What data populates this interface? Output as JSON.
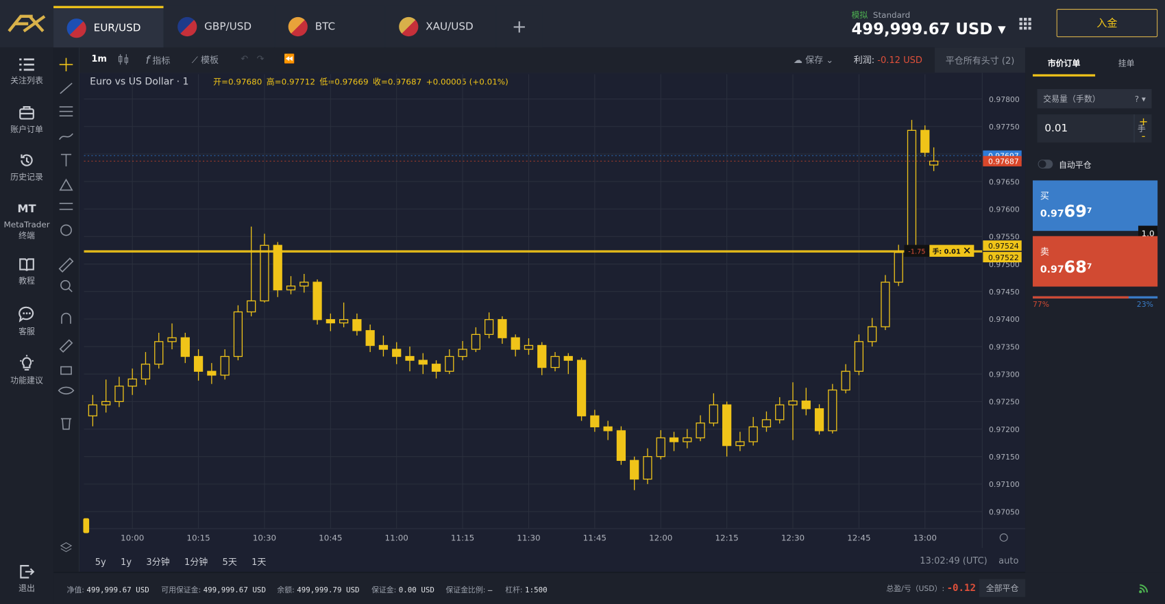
{
  "top_bar": {
    "tabs": [
      "EUR/USD",
      "GBP/USD",
      "BTC",
      "XAU/USD"
    ],
    "account_mode": "模拟",
    "account_type": "Standard",
    "balance": "499,999.67 USD",
    "deposit": "入金"
  },
  "sidebar": {
    "items": [
      "关注列表",
      "账户订单",
      "历史记录",
      "MetaTrader 终端",
      "教程",
      "客服",
      "功能建议"
    ],
    "mt": "MT",
    "logout": "退出"
  },
  "toolbar": {
    "interval": "1m",
    "indicators": "指标",
    "templates": "模板",
    "save": "保存",
    "profit_label": "利润:",
    "profit": "-0.12 USD",
    "close_all": "平仓所有头寸 (2)"
  },
  "chart_footer": {
    "ranges": [
      "5y",
      "1y",
      "3分钟",
      "1分钟",
      "5天",
      "1天"
    ],
    "clock": "13:02:49 (UTC)",
    "scale": "auto"
  },
  "status_bar": {
    "items": [
      {
        "label": "净值:",
        "value": "499,999.67 USD"
      },
      {
        "label": "可用保证金:",
        "value": "499,999.67 USD"
      },
      {
        "label": "余额:",
        "value": "499,999.79 USD"
      },
      {
        "label": "保证金:",
        "value": "0.00 USD"
      },
      {
        "label": "保证金比例:",
        "value": "–"
      },
      {
        "label": "杠杆:",
        "value": "1:500"
      }
    ],
    "pnl_label": "总盈/亏（USD）:",
    "pnl": "-0.12",
    "close_all": "全部平仓"
  },
  "order_panel": {
    "tabs": [
      "市价订单",
      "挂单"
    ],
    "volume_label": "交易量（手数）",
    "volume": "0.01",
    "unit": "手",
    "plus": "+",
    "minus": "-",
    "auto_close": "自动平仓",
    "buy": {
      "label": "买",
      "small": "0.97",
      "big": "69",
      "sup": "7"
    },
    "sell": {
      "label": "卖",
      "small": "0.97",
      "big": "68",
      "sup": "7"
    },
    "spread": "1.0",
    "sell_pct": "77%",
    "buy_pct": "23%"
  },
  "chart_data": {
    "type": "candlestick",
    "title": "Euro vs US Dollar · 1",
    "ohlc_legend": [
      "开=0.97680",
      "高=0.97712",
      "低=0.97669",
      "收=0.97687",
      "+0.00005 (+0.01%)"
    ],
    "x": [
      "09:51",
      "09:54",
      "09:57",
      "10:00",
      "10:03",
      "10:06",
      "10:09",
      "10:12",
      "10:15",
      "10:18",
      "10:21",
      "10:24",
      "10:27",
      "10:30",
      "10:33",
      "10:36",
      "10:39",
      "10:42",
      "10:45",
      "10:48",
      "10:51",
      "10:54",
      "10:57",
      "11:00",
      "11:03",
      "11:06",
      "11:09",
      "11:12",
      "11:15",
      "11:18",
      "11:21",
      "11:24",
      "11:27",
      "11:30",
      "11:33",
      "11:36",
      "11:39",
      "11:42",
      "11:45",
      "11:48",
      "11:51",
      "11:54",
      "11:57",
      "12:00",
      "12:03",
      "12:06",
      "12:09",
      "12:12",
      "12:15",
      "12:18",
      "12:21",
      "12:24",
      "12:27",
      "12:30",
      "12:33",
      "12:36",
      "12:39",
      "12:42",
      "12:45",
      "12:48",
      "12:51",
      "12:54",
      "12:57",
      "13:00",
      "13:02"
    ],
    "open": [
      0.97224,
      0.97244,
      0.9725,
      0.97278,
      0.97291,
      0.97318,
      0.97359,
      0.97366,
      0.97332,
      0.97305,
      0.97298,
      0.97332,
      0.97413,
      0.97433,
      0.97534,
      0.97453,
      0.9746,
      0.97467,
      0.97399,
      0.97393,
      0.97399,
      0.97379,
      0.97352,
      0.97345,
      0.97332,
      0.97325,
      0.97318,
      0.97305,
      0.97332,
      0.97345,
      0.97372,
      0.97399,
      0.97366,
      0.97345,
      0.97352,
      0.97312,
      0.97332,
      0.97325,
      0.97224,
      0.97204,
      0.97197,
      0.97143,
      0.97109,
      0.9715,
      0.97184,
      0.97177,
      0.97184,
      0.97211,
      0.97244,
      0.9717,
      0.97177,
      0.97204,
      0.97217,
      0.97244,
      0.97251,
      0.97237,
      0.97197,
      0.97271,
      0.97305,
      0.97359,
      0.97386,
      0.97467,
      0.97521,
      0.97743,
      0.9768
    ],
    "high": [
      0.97262,
      0.9729,
      0.97295,
      0.9731,
      0.9734,
      0.97375,
      0.97392,
      0.97375,
      0.97345,
      0.9732,
      0.97345,
      0.97425,
      0.97568,
      0.97555,
      0.9754,
      0.97478,
      0.97482,
      0.97472,
      0.9741,
      0.9743,
      0.9741,
      0.9739,
      0.9737,
      0.97358,
      0.9735,
      0.97338,
      0.97325,
      0.97345,
      0.9736,
      0.97385,
      0.97412,
      0.97405,
      0.97372,
      0.97365,
      0.97358,
      0.9734,
      0.97338,
      0.9733,
      0.97235,
      0.97215,
      0.97205,
      0.9715,
      0.97165,
      0.97198,
      0.97195,
      0.972,
      0.97225,
      0.97265,
      0.9725,
      0.97195,
      0.97222,
      0.97232,
      0.97258,
      0.97285,
      0.97275,
      0.97245,
      0.97282,
      0.97318,
      0.97372,
      0.97402,
      0.9748,
      0.97535,
      0.97762,
      0.97752,
      0.97712
    ],
    "low": [
      0.97205,
      0.9723,
      0.9724,
      0.97262,
      0.9728,
      0.9731,
      0.97345,
      0.9732,
      0.97288,
      0.97282,
      0.9729,
      0.97325,
      0.97405,
      0.9743,
      0.9744,
      0.97445,
      0.97448,
      0.9739,
      0.97378,
      0.97385,
      0.9737,
      0.9734,
      0.97332,
      0.97318,
      0.97305,
      0.973,
      0.97292,
      0.973,
      0.97325,
      0.9734,
      0.97365,
      0.97355,
      0.97332,
      0.97335,
      0.97298,
      0.97305,
      0.973,
      0.97215,
      0.97195,
      0.9718,
      0.97135,
      0.97089,
      0.971,
      0.97145,
      0.9716,
      0.97165,
      0.97178,
      0.97205,
      0.9715,
      0.9716,
      0.9717,
      0.97195,
      0.9721,
      0.9718,
      0.97225,
      0.9719,
      0.97192,
      0.97265,
      0.97298,
      0.9735,
      0.9738,
      0.9746,
      0.97515,
      0.97695,
      0.97669
    ],
    "close": [
      0.97244,
      0.9725,
      0.97278,
      0.97291,
      0.97318,
      0.97359,
      0.97366,
      0.97332,
      0.97305,
      0.97298,
      0.97332,
      0.97413,
      0.97433,
      0.97534,
      0.97453,
      0.9746,
      0.97467,
      0.97399,
      0.97393,
      0.97399,
      0.97379,
      0.97352,
      0.97345,
      0.97332,
      0.97325,
      0.97318,
      0.97305,
      0.97332,
      0.97345,
      0.97372,
      0.97399,
      0.97366,
      0.97345,
      0.97352,
      0.97312,
      0.97332,
      0.97325,
      0.97224,
      0.97204,
      0.97197,
      0.97143,
      0.97109,
      0.9715,
      0.97184,
      0.97177,
      0.97184,
      0.97211,
      0.97244,
      0.9717,
      0.97177,
      0.97204,
      0.97217,
      0.97244,
      0.97251,
      0.97237,
      0.97197,
      0.97271,
      0.97305,
      0.97359,
      0.97386,
      0.97467,
      0.97521,
      0.97743,
      0.97703,
      0.97687
    ],
    "color": "#f0c419",
    "xlim": [
      "09:49",
      "13:13"
    ],
    "xticks": [
      "10:00",
      "10:15",
      "10:30",
      "10:45",
      "11:00",
      "11:15",
      "11:30",
      "11:45",
      "12:00",
      "12:15",
      "12:30",
      "12:45",
      "13:00"
    ],
    "ylim": [
      0.97019,
      0.97845
    ],
    "yticks": [
      {
        "value": 0.9705,
        "label": "0.97050"
      },
      {
        "value": 0.971,
        "label": "0.97100"
      },
      {
        "value": 0.9715,
        "label": "0.97150"
      },
      {
        "value": 0.972,
        "label": "0.97200"
      },
      {
        "value": 0.9725,
        "label": "0.97250"
      },
      {
        "value": 0.973,
        "label": "0.97300"
      },
      {
        "value": 0.9735,
        "label": "0.97350"
      },
      {
        "value": 0.974,
        "label": "0.97400"
      },
      {
        "value": 0.9745,
        "label": "0.97450"
      },
      {
        "value": 0.975,
        "label": "0.97500"
      },
      {
        "value": 0.9755,
        "label": "0.97550"
      },
      {
        "value": 0.976,
        "label": "0.97600"
      },
      {
        "value": 0.9765,
        "label": "0.97650"
      },
      {
        "value": 0.977,
        "label": "0.97700"
      },
      {
        "value": 0.9775,
        "label": "0.97750"
      },
      {
        "value": 0.978,
        "label": "0.97800"
      }
    ],
    "grid": true,
    "price_lines": [
      {
        "value": 0.97697,
        "color": "#2f7bd6"
      },
      {
        "value": 0.97687,
        "color": "#d9472b"
      },
      {
        "value": 0.97524,
        "color": "#f0c419"
      },
      {
        "value": 0.97522,
        "color": "#f0c419"
      }
    ],
    "position": {
      "pnl": "-1.75",
      "size": "手: 0.01"
    }
  }
}
